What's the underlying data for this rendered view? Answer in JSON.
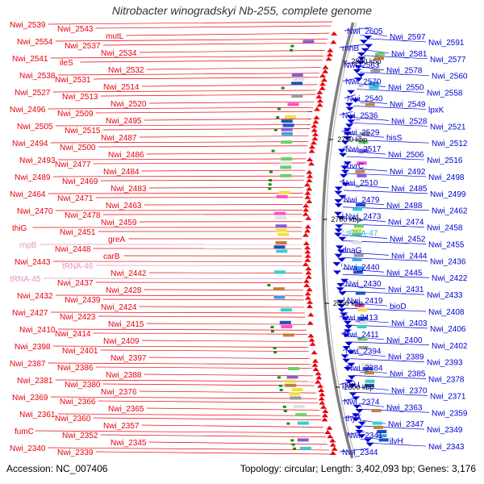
{
  "title": "Nitrobacter winogradskyi Nb-255, complete genome",
  "footer": {
    "accession_label": "Accession:",
    "accession": "NC_007406",
    "topology_label": "Topology:",
    "topology": "circular",
    "length_label": "Length:",
    "length": "3,402,093 bp",
    "genes_label": "Genes:",
    "genes": "3,176"
  },
  "colors": {
    "forward": "#e8000b",
    "reverse": "#0000d6",
    "rna_forward": "#e68fc6",
    "rna_reverse": "#27b6d6",
    "backbone": "#808080"
  },
  "ticks": [
    "2800 kbp",
    "2750 kbp",
    "2700 kbp",
    "2650 kbp",
    "2600 kbp"
  ],
  "left_labels": [
    "Nwi_2539",
    "Nwi_2543",
    "mutL",
    "Nwi_2554",
    "Nwi_2537",
    "Nwi_2534",
    "Nwi_2541",
    "ileS",
    "Nwi_2532",
    "Nwi_2538",
    "Nwi_2531",
    "Nwi_2514",
    "Nwi_2527",
    "Nwi_2513",
    "Nwi_2520",
    "Nwi_2496",
    "Nwi_2509",
    "Nwi_2495",
    "Nwi_2505",
    "Nwi_2515",
    "Nwi_2487",
    "Nwi_2494",
    "Nwi_2500",
    "Nwi_2486",
    "Nwi_2493",
    "Nwi_2477",
    "Nwi_2484",
    "Nwi_2489",
    "Nwi_2469",
    "Nwi_2483",
    "Nwi_2464",
    "Nwi_2471",
    "Nwi_2463",
    "Nwi_2470",
    "Nwi_2478",
    "Nwi_2459",
    "thiG",
    "Nwi_2451",
    "greA",
    "rnpB",
    "Nwi_2448",
    "carB",
    "Nwi_2443",
    "tRNA-46",
    "Nwi_2442",
    "tRNA-45",
    "Nwi_2437",
    "Nwi_2428",
    "Nwi_2432",
    "Nwi_2439",
    "Nwi_2424",
    "Nwi_2427",
    "Nwi_2423",
    "Nwi_2415",
    "Nwi_2410",
    "Nwi_2414",
    "Nwi_2409",
    "Nwi_2398",
    "Nwi_2401",
    "Nwi_2397",
    "Nwi_2387",
    "Nwi_2386",
    "Nwi_2388",
    "Nwi_2381",
    "Nwi_2380",
    "Nwi_2376",
    "Nwi_2369",
    "Nwi_2366",
    "Nwi_2365",
    "Nwi_2361",
    "Nwi_2360",
    "Nwi_2357",
    "fumC",
    "Nwi_2352",
    "Nwi_2345",
    "Nwi_2340",
    "Nwi_2339"
  ],
  "right_labels": [
    "Nwi_2605",
    "Nwi_2597",
    "Nwi_2591",
    "rnhB",
    "Nwi_2581",
    "Nwi_2577",
    "Nwi_2563",
    "Nwi_2578",
    "Nwi_2560",
    "Nwi_2570",
    "Nwi_2550",
    "Nwi_2558",
    "Nwi_2540",
    "Nwi_2549",
    "lpxK",
    "Nwi_2536",
    "Nwi_2528",
    "Nwi_2521",
    "Nwi_2529",
    "hisS",
    "Nwi_2512",
    "Nwi_2517",
    "Nwi_2506",
    "Nwi_2516",
    "uvrC",
    "Nwi_2492",
    "Nwi_2498",
    "Nwi_2510",
    "Nwi_2485",
    "Nwi_2499",
    "Nwi_2479",
    "Nwi_2488",
    "Nwi_2462",
    "Nwi_2473",
    "Nwi_2474",
    "Nwi_2458",
    "tRNA-47",
    "Nwi_2452",
    "Nwi_2455",
    "dnaG",
    "Nwi_2444",
    "Nwi_2436",
    "Nwi_2440",
    "Nwi_2445",
    "Nwi_2422",
    "Nwi_2430",
    "Nwi_2431",
    "Nwi_2433",
    "Nwi_2419",
    "bioD",
    "Nwi_2408",
    "Nwi_2413",
    "Nwi_2403",
    "Nwi_2406",
    "Nwi_2411",
    "Nwi_2400",
    "Nwi_2402",
    "Nwi_2394",
    "Nwi_2389",
    "Nwi_2393",
    "Nwi_2384",
    "Nwi_2385",
    "Nwi_2378",
    "purU",
    "Nwi_2370",
    "Nwi_2371",
    "Nwi_2374",
    "Nwi_2363",
    "Nwi_2359",
    "thyA",
    "Nwi_2347",
    "Nwi_2349",
    "Nwi_2341",
    "ilvH",
    "Nwi_2343",
    "Nwi_2344"
  ]
}
